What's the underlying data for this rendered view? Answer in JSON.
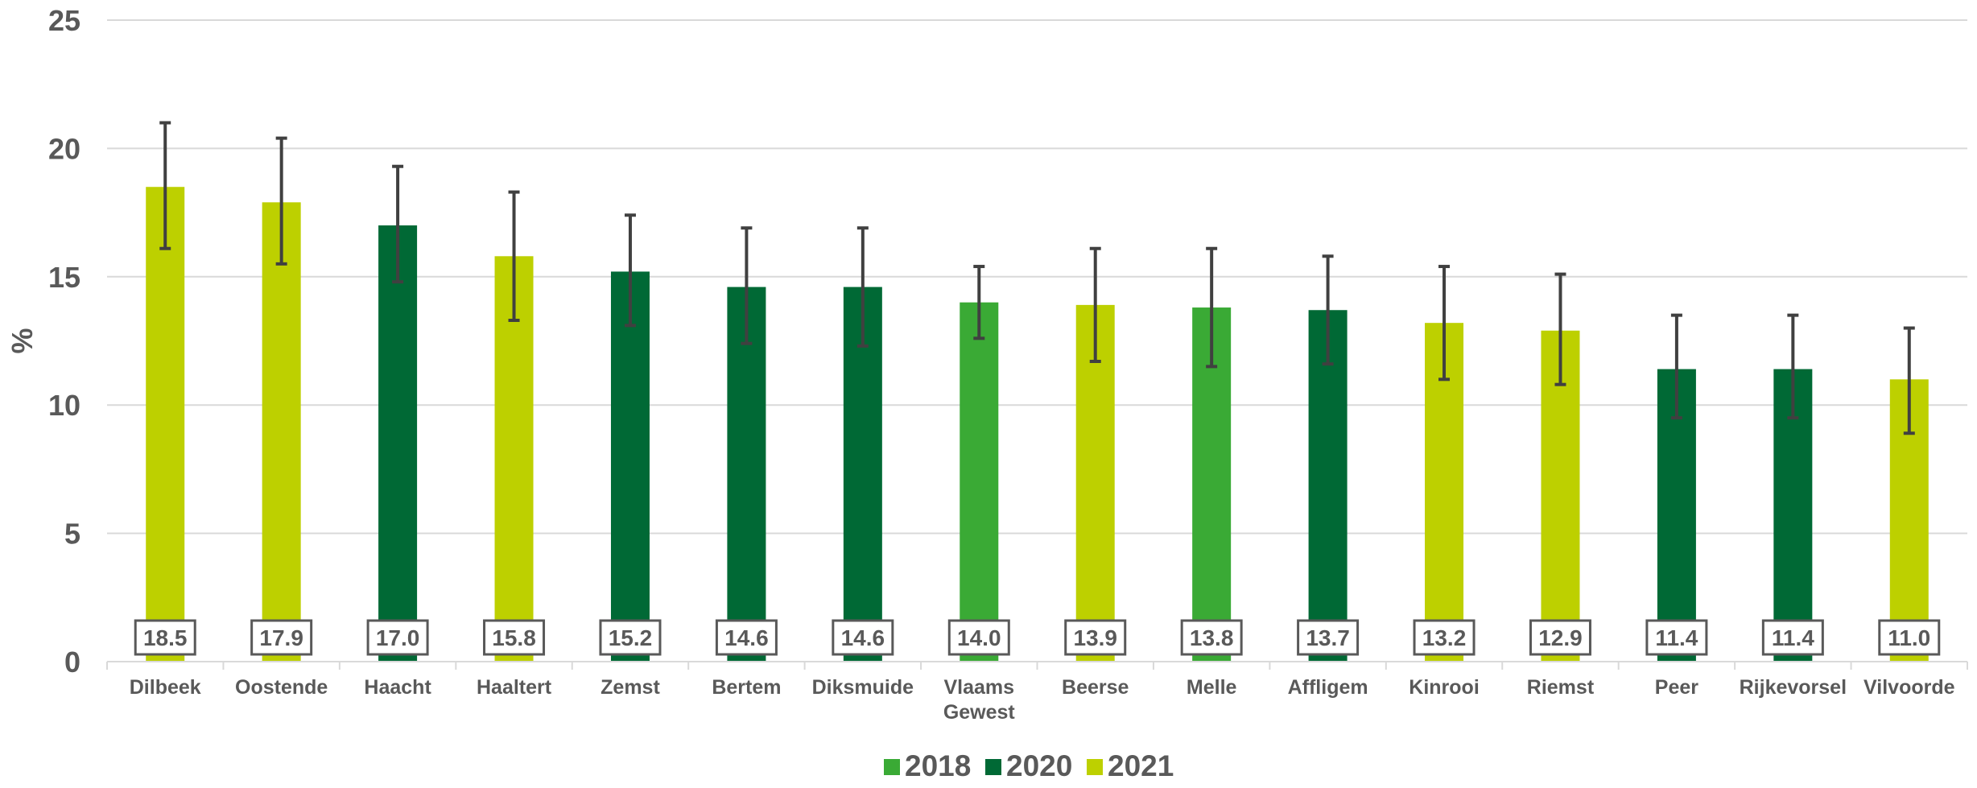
{
  "chart_data": {
    "type": "bar",
    "ylabel": "%",
    "ylim": [
      0,
      25
    ],
    "yticks": [
      0,
      5,
      10,
      15,
      20,
      25
    ],
    "grid": true,
    "legend_position": "bottom-center",
    "categories": [
      "Dilbeek",
      "Oostende",
      "Haacht",
      "Haaltert",
      "Zemst",
      "Bertem",
      "Diksmuide",
      "Vlaams Gewest",
      "Beerse",
      "Melle",
      "Affligem",
      "Kinrooi",
      "Riemst",
      "Peer",
      "Rijkevorsel",
      "Vilvoorde"
    ],
    "category_lines": [
      [
        "Dilbeek"
      ],
      [
        "Oostende"
      ],
      [
        "Haacht"
      ],
      [
        "Haaltert"
      ],
      [
        "Zemst"
      ],
      [
        "Bertem"
      ],
      [
        "Diksmuide"
      ],
      [
        "Vlaams",
        "Gewest"
      ],
      [
        "Beerse"
      ],
      [
        "Melle"
      ],
      [
        "Affligem"
      ],
      [
        "Kinrooi"
      ],
      [
        "Riemst"
      ],
      [
        "Peer"
      ],
      [
        "Rijkevorsel"
      ],
      [
        "Vilvoorde"
      ]
    ],
    "values": [
      18.5,
      17.9,
      17.0,
      15.8,
      15.2,
      14.6,
      14.6,
      14.0,
      13.9,
      13.8,
      13.7,
      13.2,
      12.9,
      11.4,
      11.4,
      11.0
    ],
    "value_labels": [
      "18.5",
      "17.9",
      "17.0",
      "15.8",
      "15.2",
      "14.6",
      "14.6",
      "14.0",
      "13.9",
      "13.8",
      "13.7",
      "13.2",
      "12.9",
      "11.4",
      "11.4",
      "11.0"
    ],
    "error_low": [
      16.1,
      15.5,
      14.8,
      13.3,
      13.1,
      12.4,
      12.3,
      12.6,
      11.7,
      11.5,
      11.6,
      11.0,
      10.8,
      9.5,
      9.5,
      8.9
    ],
    "error_high": [
      21.0,
      20.4,
      19.3,
      18.3,
      17.4,
      16.9,
      16.9,
      15.4,
      16.1,
      16.1,
      15.8,
      15.4,
      15.1,
      13.5,
      13.5,
      13.0
    ],
    "year_of_bar": [
      "2021",
      "2021",
      "2020",
      "2021",
      "2020",
      "2020",
      "2020",
      "2018",
      "2021",
      "2018",
      "2020",
      "2021",
      "2021",
      "2020",
      "2020",
      "2021"
    ],
    "legend": [
      {
        "name": "2018",
        "color": "#3aaa35"
      },
      {
        "name": "2020",
        "color": "#006935"
      },
      {
        "name": "2021",
        "color": "#bdd000"
      }
    ],
    "colors": {
      "grid": "#d9d9d9",
      "axis": "#d9d9d9",
      "error_bar": "#404040",
      "label_border": "#595959",
      "text": "#595959"
    }
  }
}
